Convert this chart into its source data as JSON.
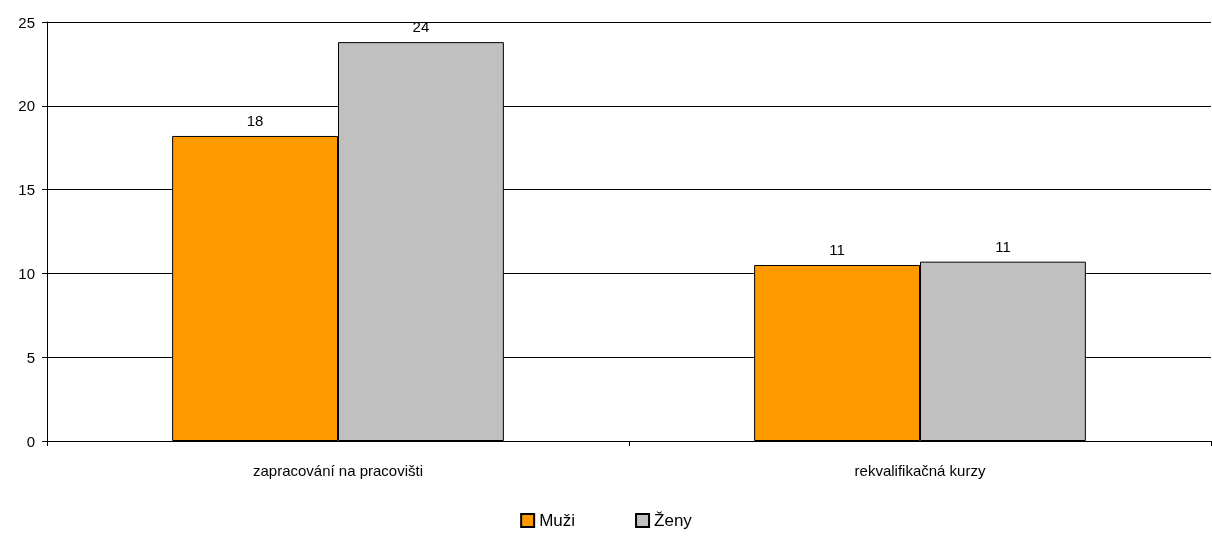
{
  "chart_data": {
    "type": "bar",
    "categories": [
      "zapracování na pracovišti",
      "rekvalifikačná kurzy"
    ],
    "series": [
      {
        "name": "Muži",
        "color": "#ff9900",
        "values": [
          18.2,
          10.5
        ],
        "value_labels": [
          "18",
          "11"
        ]
      },
      {
        "name": "Ženy",
        "color": "#c0c0c0",
        "values": [
          23.8,
          10.7
        ],
        "value_labels": [
          "24",
          "11"
        ]
      }
    ],
    "ylim": [
      0,
      25
    ],
    "yticks": [
      0,
      5,
      10,
      15,
      20,
      25
    ],
    "grid": "y",
    "legend": "bottom"
  }
}
